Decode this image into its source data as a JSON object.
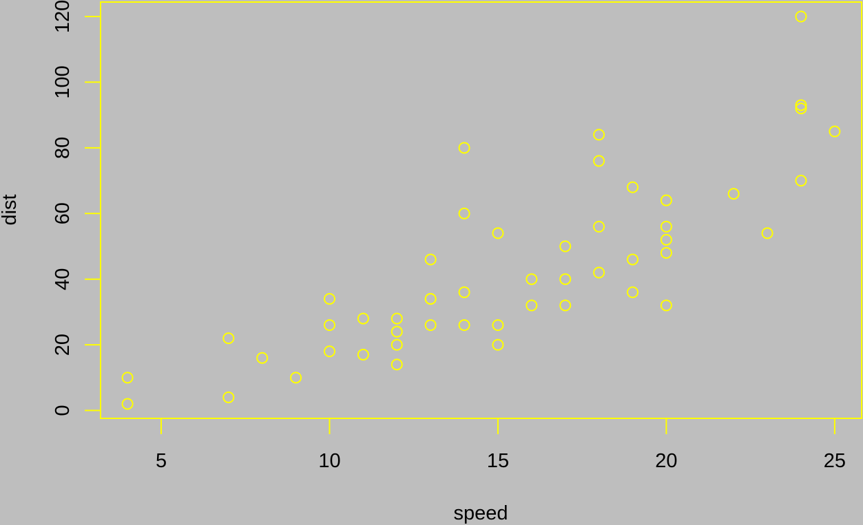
{
  "chart_data": {
    "type": "scatter",
    "title": "",
    "xlabel": "speed",
    "ylabel": "dist",
    "xlim": [
      3.2,
      25.8
    ],
    "ylim": [
      -2.4,
      124.4
    ],
    "x_ticks": [
      5,
      10,
      15,
      20,
      25
    ],
    "y_ticks": [
      0,
      20,
      40,
      60,
      80,
      100,
      120
    ],
    "grid": false,
    "legend": "none",
    "colors": {
      "background": "#bebebe",
      "points": "#ffff00",
      "frame": "#ffff00",
      "axis": "#ffff00",
      "text": "#000000"
    },
    "points": [
      {
        "x": 4,
        "y": 2
      },
      {
        "x": 4,
        "y": 10
      },
      {
        "x": 7,
        "y": 4
      },
      {
        "x": 7,
        "y": 22
      },
      {
        "x": 8,
        "y": 16
      },
      {
        "x": 9,
        "y": 10
      },
      {
        "x": 10,
        "y": 18
      },
      {
        "x": 10,
        "y": 26
      },
      {
        "x": 10,
        "y": 34
      },
      {
        "x": 11,
        "y": 17
      },
      {
        "x": 11,
        "y": 28
      },
      {
        "x": 12,
        "y": 14
      },
      {
        "x": 12,
        "y": 20
      },
      {
        "x": 12,
        "y": 24
      },
      {
        "x": 12,
        "y": 28
      },
      {
        "x": 13,
        "y": 26
      },
      {
        "x": 13,
        "y": 34
      },
      {
        "x": 13,
        "y": 34
      },
      {
        "x": 13,
        "y": 46
      },
      {
        "x": 14,
        "y": 26
      },
      {
        "x": 14,
        "y": 36
      },
      {
        "x": 14,
        "y": 60
      },
      {
        "x": 14,
        "y": 80
      },
      {
        "x": 15,
        "y": 20
      },
      {
        "x": 15,
        "y": 26
      },
      {
        "x": 15,
        "y": 54
      },
      {
        "x": 16,
        "y": 32
      },
      {
        "x": 16,
        "y": 40
      },
      {
        "x": 17,
        "y": 32
      },
      {
        "x": 17,
        "y": 40
      },
      {
        "x": 17,
        "y": 50
      },
      {
        "x": 18,
        "y": 42
      },
      {
        "x": 18,
        "y": 56
      },
      {
        "x": 18,
        "y": 76
      },
      {
        "x": 18,
        "y": 84
      },
      {
        "x": 19,
        "y": 36
      },
      {
        "x": 19,
        "y": 46
      },
      {
        "x": 19,
        "y": 68
      },
      {
        "x": 20,
        "y": 32
      },
      {
        "x": 20,
        "y": 48
      },
      {
        "x": 20,
        "y": 52
      },
      {
        "x": 20,
        "y": 56
      },
      {
        "x": 20,
        "y": 64
      },
      {
        "x": 22,
        "y": 66
      },
      {
        "x": 23,
        "y": 54
      },
      {
        "x": 24,
        "y": 70
      },
      {
        "x": 24,
        "y": 92
      },
      {
        "x": 24,
        "y": 93
      },
      {
        "x": 24,
        "y": 120
      },
      {
        "x": 25,
        "y": 85
      }
    ]
  }
}
